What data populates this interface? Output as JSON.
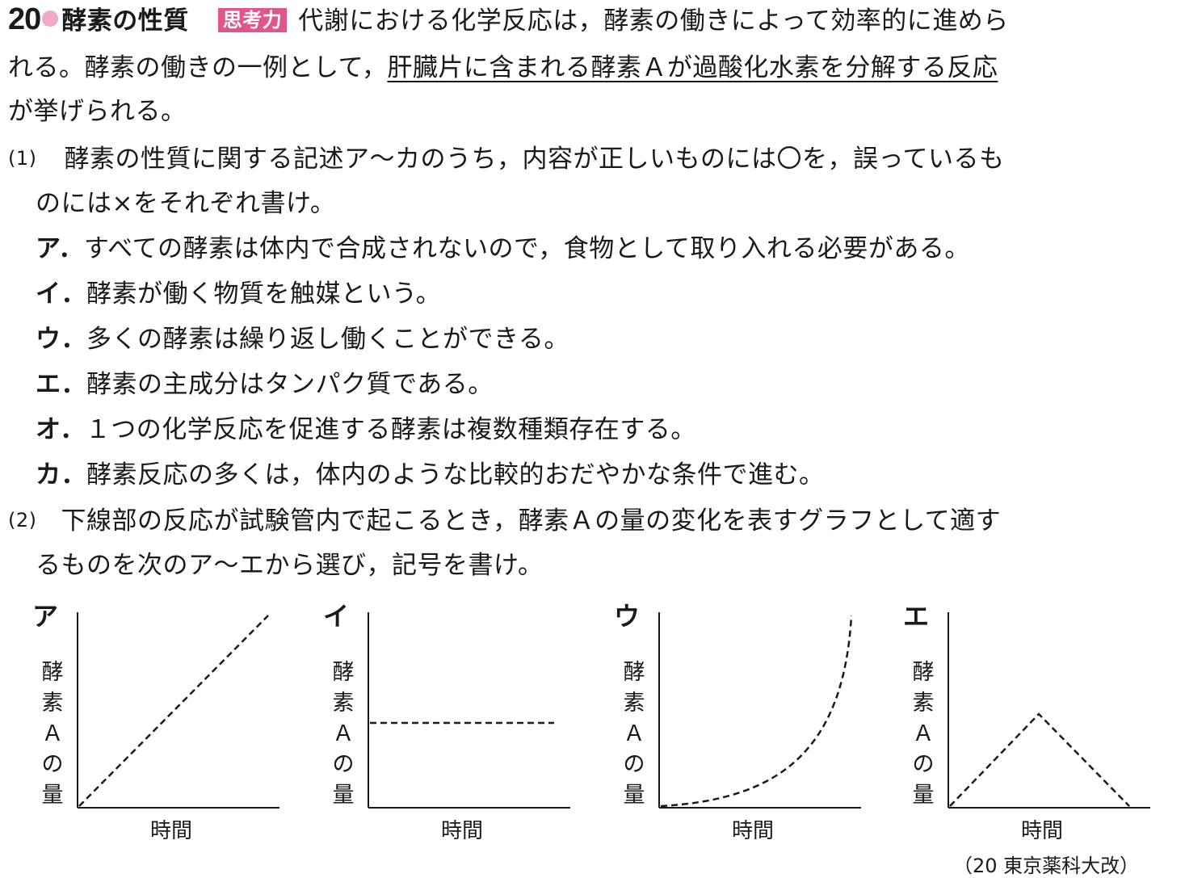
{
  "header": {
    "number": "20",
    "title": "酵素の性質",
    "tag": "思考力",
    "intro_1": "代謝における化学反応は，酵素の働きによって効率的に進めら",
    "intro_2a": "れる。酵素の働きの一例として，",
    "intro_2b": "肝臓片に含まれる酵素Ａが過酸化水素を分解する反応",
    "intro_3": "が挙げられる。"
  },
  "q1": {
    "label": "(1)",
    "text_1": "酵素の性質に関する記述ア～カのうち，内容が正しいものには〇を，誤っているも",
    "text_2": "のには×をそれぞれ書け。",
    "statements": [
      {
        "letter": "ア．",
        "text": "すべての酵素は体内で合成されないので，食物として取り入れる必要がある。"
      },
      {
        "letter": "イ．",
        "text": "酵素が働く物質を触媒という。"
      },
      {
        "letter": "ウ．",
        "text": "多くの酵素は繰り返し働くことができる。"
      },
      {
        "letter": "エ．",
        "text": "酵素の主成分はタンパク質である。"
      },
      {
        "letter": "オ．",
        "text": "１つの化学反応を促進する酵素は複数種類存在する。"
      },
      {
        "letter": "カ．",
        "text": "酵素反応の多くは，体内のような比較的おだやかな条件で進む。"
      }
    ]
  },
  "q2": {
    "label": "(2)",
    "text_1": "下線部の反応が試験管内で起こるとき，酵素Ａの量の変化を表すグラフとして適す",
    "text_2": "るものを次のア～エから選び，記号を書け。"
  },
  "graphs": [
    {
      "letter": "ア",
      "shape": "increasing-line",
      "ylabel": [
        "酵",
        "素",
        "Ａ",
        "の",
        "量"
      ],
      "xlabel": "時間"
    },
    {
      "letter": "イ",
      "shape": "constant",
      "ylabel": [
        "酵",
        "素",
        "Ａ",
        "の",
        "量"
      ],
      "xlabel": "時間"
    },
    {
      "letter": "ウ",
      "shape": "exponential-increase",
      "ylabel": [
        "酵",
        "素",
        "Ａ",
        "の",
        "量"
      ],
      "xlabel": "時間"
    },
    {
      "letter": "エ",
      "shape": "rise-then-fall",
      "ylabel": [
        "酵",
        "素",
        "Ａ",
        "の",
        "量"
      ],
      "xlabel": "時間"
    }
  ],
  "source": "（20 東京薬科大改）",
  "colors": {
    "accent_pink": "#e0568c",
    "dot_pink": "#f2a8c9"
  }
}
